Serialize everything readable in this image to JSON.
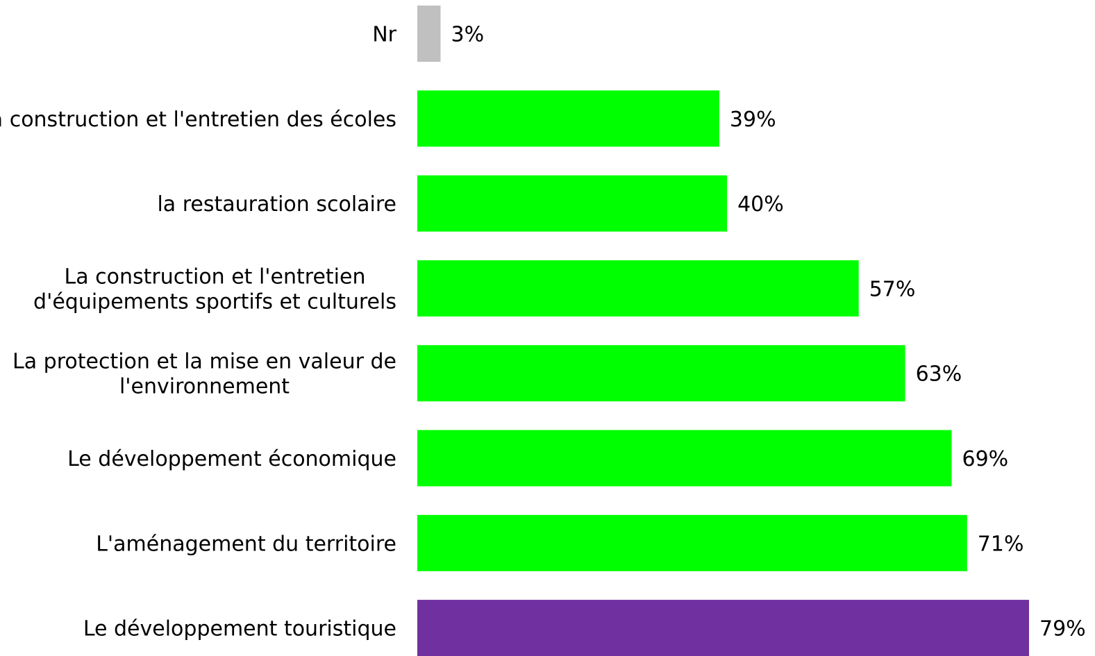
{
  "chart_data": {
    "type": "bar",
    "orientation": "horizontal",
    "categories": [
      [
        "Nr"
      ],
      [
        "La construction et l'entretien des écoles"
      ],
      [
        "la restauration scolaire"
      ],
      [
        "La construction et l'entretien",
        "d'équipements sportifs et culturels"
      ],
      [
        "La protection et la mise en valeur de",
        "l'environnement"
      ],
      [
        "Le développement économique"
      ],
      [
        "L'aménagement du territoire"
      ],
      [
        "Le développement touristique"
      ]
    ],
    "values": [
      3,
      39,
      40,
      57,
      63,
      69,
      71,
      79
    ],
    "value_labels": [
      "3%",
      "39%",
      "40%",
      "57%",
      "63%",
      "69%",
      "71%",
      "79%"
    ],
    "colors": [
      "#c0c0c0",
      "#00ff00",
      "#00ff00",
      "#00ff00",
      "#00ff00",
      "#00ff00",
      "#00ff00",
      "#7030a0"
    ],
    "xlim": [
      0,
      79
    ],
    "grid": false,
    "legend": "none"
  }
}
